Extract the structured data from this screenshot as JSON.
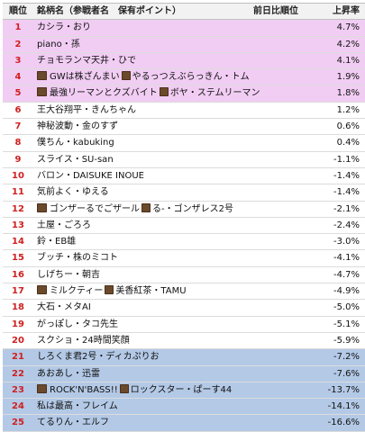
{
  "header": {
    "rank": "順位",
    "name": "銘柄名（参戦者名　保有ポイント）",
    "prev": "前日比順位",
    "rate": "上昇率"
  },
  "rows": [
    {
      "rank": "1",
      "name": "カシラ・おり",
      "rate": "4.7%",
      "group": "top"
    },
    {
      "rank": "2",
      "name": "piano・孫",
      "rate": "4.2%",
      "group": "top"
    },
    {
      "rank": "3",
      "name": "チョモランマ天井・ひで",
      "rate": "4.1%",
      "group": "top"
    },
    {
      "rank": "4",
      "name": "GWは株ざんまい",
      "name2": "やるっつえぶらっきん・トム",
      "icon": true,
      "icon2": true,
      "rate": "1.9%",
      "group": "top"
    },
    {
      "rank": "5",
      "name": "最強リーマンとクズバイト",
      "name2": "ボヤ・ステムリーマン",
      "icon": true,
      "icon2": true,
      "rate": "1.8%",
      "group": "top"
    },
    {
      "rank": "6",
      "name": "王大谷翔平・きんちゃん",
      "rate": "1.2%",
      "group": "mid"
    },
    {
      "rank": "7",
      "name": "神秘波動・金のすず",
      "rate": "0.6%",
      "group": "mid"
    },
    {
      "rank": "8",
      "name": "僕ちん・kabuking",
      "rate": "0.4%",
      "group": "mid"
    },
    {
      "rank": "9",
      "name": "スライス・SU-san",
      "rate": "-1.1%",
      "group": "mid"
    },
    {
      "rank": "10",
      "name": "バロン・DAISUKE INOUE",
      "rate": "-1.4%",
      "group": "mid"
    },
    {
      "rank": "11",
      "name": "気前よく・ゆえる",
      "rate": "-1.4%",
      "group": "mid"
    },
    {
      "rank": "12",
      "name": "ゴンザーるでごザール",
      "name2": "る-・ゴンザレス2号",
      "icon": true,
      "icon2": true,
      "rate": "-2.1%",
      "group": "mid"
    },
    {
      "rank": "13",
      "name": "土屋・ごろろ",
      "rate": "-2.4%",
      "group": "mid"
    },
    {
      "rank": "14",
      "name": "鈴・EB雄",
      "rate": "-3.0%",
      "group": "mid"
    },
    {
      "rank": "15",
      "name": "ブッチ・株のミコト",
      "rate": "-4.1%",
      "group": "mid"
    },
    {
      "rank": "16",
      "name": "しげちー・朝吉",
      "rate": "-4.7%",
      "group": "mid"
    },
    {
      "rank": "17",
      "name": "ミルクティー",
      "name2": "美香紅茶・TAMU",
      "icon": true,
      "icon2": true,
      "rate": "-4.9%",
      "group": "mid"
    },
    {
      "rank": "18",
      "name": "大石・メタAI",
      "rate": "-5.0%",
      "group": "mid"
    },
    {
      "rank": "19",
      "name": "がっぽし・タコ先生",
      "rate": "-5.1%",
      "group": "mid"
    },
    {
      "rank": "20",
      "name": "スクショ・24時間笑顔",
      "rate": "-5.9%",
      "group": "mid"
    },
    {
      "rank": "21",
      "name": "しろくま君2号・ディカぷりお",
      "rate": "-7.2%",
      "group": "bottom"
    },
    {
      "rank": "22",
      "name": "あおあし・迅雷",
      "rate": "-7.6%",
      "group": "bottom"
    },
    {
      "rank": "23",
      "name": "ROCK'N'BASS!!",
      "name2": "ロックスター・ぱーす44",
      "icon": true,
      "icon2": true,
      "rate": "-13.7%",
      "group": "bottom"
    },
    {
      "rank": "24",
      "name": "私は最高・フレイム",
      "rate": "-14.1%",
      "group": "bottom"
    },
    {
      "rank": "25",
      "name": "てるりん・エルフ",
      "rate": "-16.6%",
      "group": "bottom"
    }
  ]
}
